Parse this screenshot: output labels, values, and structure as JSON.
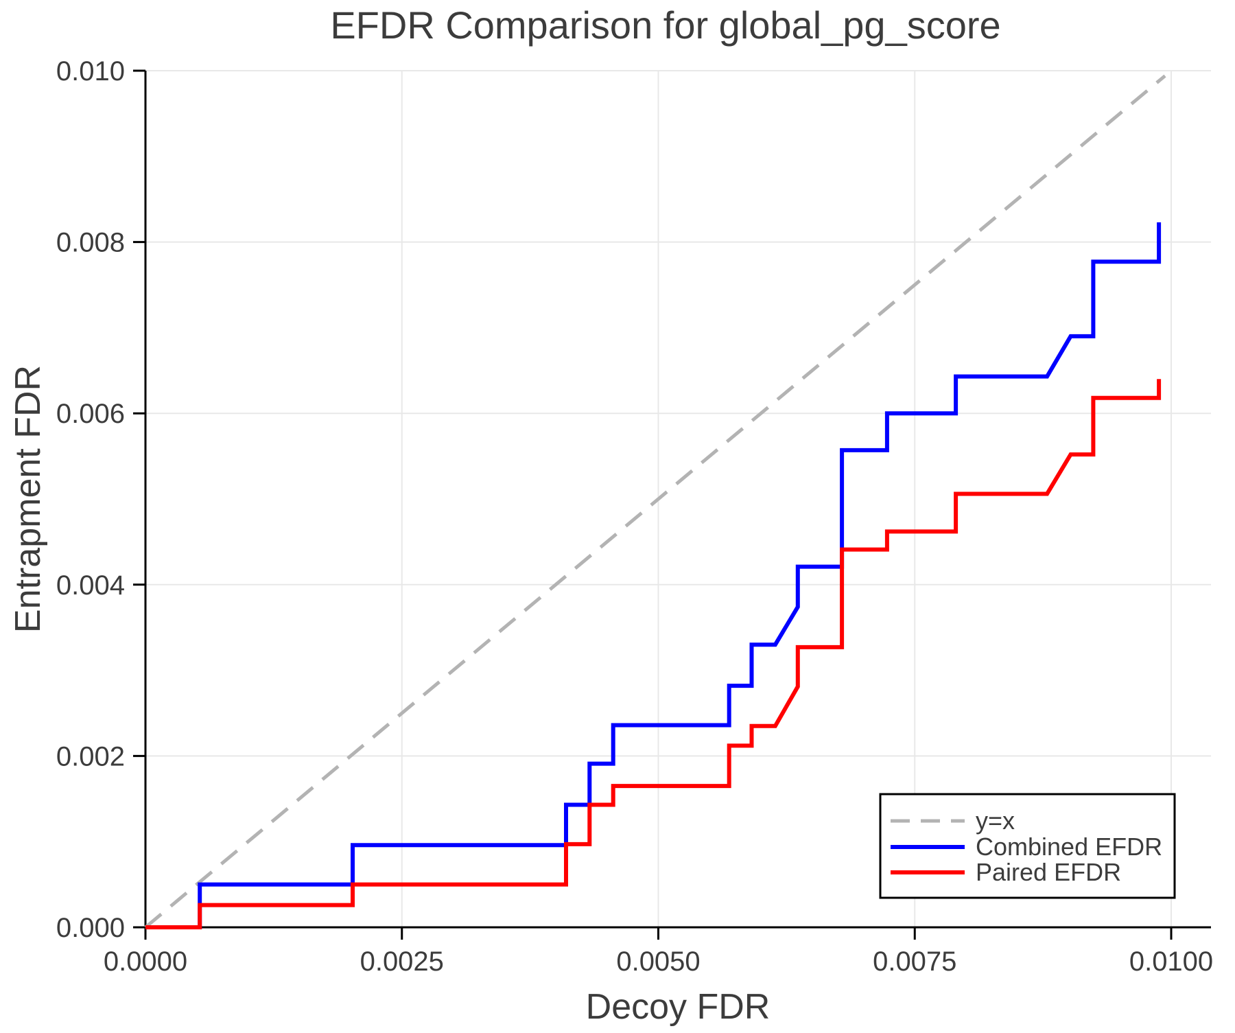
{
  "title": "EFDR Comparison for global_pg_score",
  "axes": {
    "xlabel": "Decoy FDR",
    "ylabel": "Entrapment FDR",
    "xlim": [
      0.0,
      0.0104
    ],
    "ylim": [
      0.0,
      0.01
    ],
    "x_ticks": [
      0.0,
      0.0025,
      0.005,
      0.0075,
      0.01
    ],
    "x_tick_labels": [
      "0.0000",
      "0.0025",
      "0.0050",
      "0.0075",
      "0.0100"
    ],
    "y_ticks": [
      0.0,
      0.002,
      0.004,
      0.006,
      0.008,
      0.01
    ],
    "y_tick_labels": [
      "0.000",
      "0.002",
      "0.004",
      "0.006",
      "0.008",
      "0.010"
    ],
    "grid": true,
    "grid_color": "#e8e8e8",
    "spine_color": "#000000",
    "text_color": "#3c3c3c"
  },
  "legend": {
    "position": "lower right",
    "border_color": "#000000",
    "items": [
      {
        "label": "y=x"
      },
      {
        "label": "Combined EFDR"
      },
      {
        "label": "Paired EFDR"
      }
    ]
  },
  "chart_data": {
    "type": "line",
    "title": "EFDR Comparison for global_pg_score",
    "xlabel": "Decoy FDR",
    "ylabel": "Entrapment FDR",
    "xlim": [
      0.0,
      0.0104
    ],
    "ylim": [
      0.0,
      0.01
    ],
    "legend_position": "lower right",
    "grid": "on",
    "series": [
      {
        "name": "y=x",
        "color": "#b3b3b3",
        "dash": "30 18",
        "width": 5,
        "points": [
          [
            0.0,
            0.0
          ],
          [
            0.00994,
            0.00994
          ]
        ]
      },
      {
        "name": "Combined EFDR",
        "color": "#0000ff",
        "dash": "",
        "width": 6,
        "points": [
          [
            0.0,
            0.0
          ],
          [
            0.00053,
            0.0
          ],
          [
            0.00053,
            0.0005
          ],
          [
            0.00202,
            0.0005
          ],
          [
            0.00202,
            0.00096
          ],
          [
            0.0041,
            0.00096
          ],
          [
            0.0041,
            0.00143
          ],
          [
            0.00433,
            0.00143
          ],
          [
            0.00433,
            0.00191
          ],
          [
            0.00456,
            0.00191
          ],
          [
            0.00456,
            0.00236
          ],
          [
            0.00569,
            0.00236
          ],
          [
            0.00569,
            0.00282
          ],
          [
            0.00591,
            0.00282
          ],
          [
            0.00591,
            0.0033
          ],
          [
            0.00614,
            0.0033
          ],
          [
            0.00636,
            0.00374
          ],
          [
            0.00636,
            0.00421
          ],
          [
            0.00679,
            0.00421
          ],
          [
            0.00679,
            0.00557
          ],
          [
            0.00723,
            0.00557
          ],
          [
            0.00723,
            0.006
          ],
          [
            0.0079,
            0.006
          ],
          [
            0.0079,
            0.00643
          ],
          [
            0.00879,
            0.00643
          ],
          [
            0.00902,
            0.0069
          ],
          [
            0.00924,
            0.0069
          ],
          [
            0.00924,
            0.00777
          ],
          [
            0.00988,
            0.00777
          ],
          [
            0.00988,
            0.00823
          ]
        ]
      },
      {
        "name": "Paired EFDR",
        "color": "#ff0000",
        "dash": "",
        "width": 6,
        "points": [
          [
            0.0,
            0.0
          ],
          [
            0.00053,
            0.0
          ],
          [
            0.00053,
            0.00026
          ],
          [
            0.00202,
            0.00026
          ],
          [
            0.00202,
            0.0005
          ],
          [
            0.0041,
            0.0005
          ],
          [
            0.0041,
            0.00097
          ],
          [
            0.00433,
            0.00097
          ],
          [
            0.00433,
            0.00143
          ],
          [
            0.00456,
            0.00143
          ],
          [
            0.00456,
            0.00165
          ],
          [
            0.00569,
            0.00165
          ],
          [
            0.00569,
            0.00212
          ],
          [
            0.00591,
            0.00212
          ],
          [
            0.00591,
            0.00235
          ],
          [
            0.00614,
            0.00235
          ],
          [
            0.00636,
            0.00281
          ],
          [
            0.00636,
            0.00327
          ],
          [
            0.00679,
            0.00327
          ],
          [
            0.00679,
            0.00441
          ],
          [
            0.00723,
            0.00441
          ],
          [
            0.00723,
            0.00462
          ],
          [
            0.0079,
            0.00462
          ],
          [
            0.0079,
            0.00506
          ],
          [
            0.00879,
            0.00506
          ],
          [
            0.00902,
            0.00552
          ],
          [
            0.00924,
            0.00552
          ],
          [
            0.00924,
            0.00618
          ],
          [
            0.00988,
            0.00618
          ],
          [
            0.00988,
            0.0064
          ]
        ]
      }
    ]
  }
}
